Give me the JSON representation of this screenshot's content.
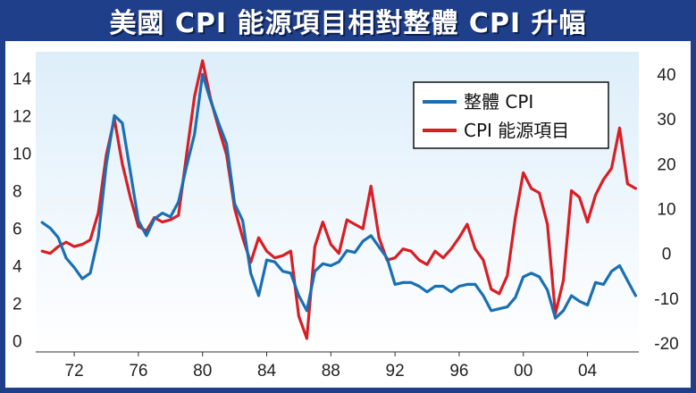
{
  "title": "美國 CPI 能源項目相對整體 CPI 升幅",
  "chart_data": {
    "type": "line",
    "title": "美國 CPI 能源項目相對整體 CPI 升幅",
    "xlabel": "",
    "ylabel": "",
    "xlim": [
      1969.6,
      2007.2
    ],
    "x_ticks": [
      1972,
      1976,
      1980,
      1984,
      1988,
      1992,
      1996,
      2000,
      2004
    ],
    "x_tick_labels": [
      "72",
      "76",
      "80",
      "84",
      "88",
      "92",
      "96",
      "00",
      "04"
    ],
    "y_left": {
      "range": [
        -0.6,
        15.4
      ],
      "ticks": [
        0,
        2,
        4,
        6,
        8,
        10,
        12,
        14
      ]
    },
    "y_right": {
      "range": [
        -22,
        45
      ],
      "ticks": [
        -20,
        -10,
        0,
        10,
        20,
        30,
        40
      ]
    },
    "grid": false,
    "legend_position": "top-right",
    "background_gradient": [
      "#ddeefa",
      "#ffffff"
    ],
    "series": [
      {
        "name": "整體 CPI",
        "axis": "left",
        "color": "#1a6fb3",
        "points": [
          [
            1970.0,
            6.3
          ],
          [
            1970.5,
            6.0
          ],
          [
            1971.0,
            5.5
          ],
          [
            1971.5,
            4.4
          ],
          [
            1972.0,
            3.9
          ],
          [
            1972.5,
            3.3
          ],
          [
            1973.0,
            3.6
          ],
          [
            1973.5,
            5.5
          ],
          [
            1974.0,
            9.4
          ],
          [
            1974.5,
            12.0
          ],
          [
            1975.0,
            11.6
          ],
          [
            1975.5,
            9.0
          ],
          [
            1976.0,
            6.4
          ],
          [
            1976.5,
            5.6
          ],
          [
            1977.0,
            6.5
          ],
          [
            1977.5,
            6.8
          ],
          [
            1978.0,
            6.6
          ],
          [
            1978.5,
            7.4
          ],
          [
            1979.0,
            9.3
          ],
          [
            1979.5,
            11.0
          ],
          [
            1980.0,
            14.2
          ],
          [
            1980.5,
            12.8
          ],
          [
            1981.0,
            11.6
          ],
          [
            1981.5,
            10.5
          ],
          [
            1982.0,
            7.3
          ],
          [
            1982.5,
            6.4
          ],
          [
            1983.0,
            3.6
          ],
          [
            1983.5,
            2.4
          ],
          [
            1984.0,
            4.3
          ],
          [
            1984.5,
            4.2
          ],
          [
            1985.0,
            3.7
          ],
          [
            1985.5,
            3.6
          ],
          [
            1986.0,
            2.4
          ],
          [
            1986.5,
            1.6
          ],
          [
            1987.0,
            3.7
          ],
          [
            1987.5,
            4.1
          ],
          [
            1988.0,
            4.0
          ],
          [
            1988.5,
            4.2
          ],
          [
            1989.0,
            4.8
          ],
          [
            1989.5,
            4.7
          ],
          [
            1990.0,
            5.3
          ],
          [
            1990.5,
            5.6
          ],
          [
            1991.0,
            5.0
          ],
          [
            1991.5,
            4.4
          ],
          [
            1992.0,
            3.0
          ],
          [
            1992.5,
            3.1
          ],
          [
            1993.0,
            3.1
          ],
          [
            1993.5,
            2.9
          ],
          [
            1994.0,
            2.6
          ],
          [
            1994.5,
            2.9
          ],
          [
            1995.0,
            2.9
          ],
          [
            1995.5,
            2.6
          ],
          [
            1996.0,
            2.9
          ],
          [
            1996.5,
            3.0
          ],
          [
            1997.0,
            3.0
          ],
          [
            1997.5,
            2.4
          ],
          [
            1998.0,
            1.6
          ],
          [
            1998.5,
            1.7
          ],
          [
            1999.0,
            1.8
          ],
          [
            1999.5,
            2.3
          ],
          [
            2000.0,
            3.4
          ],
          [
            2000.5,
            3.6
          ],
          [
            2001.0,
            3.4
          ],
          [
            2001.5,
            2.7
          ],
          [
            2002.0,
            1.2
          ],
          [
            2002.5,
            1.6
          ],
          [
            2003.0,
            2.4
          ],
          [
            2003.5,
            2.1
          ],
          [
            2004.0,
            1.9
          ],
          [
            2004.5,
            3.1
          ],
          [
            2005.0,
            3.0
          ],
          [
            2005.5,
            3.7
          ],
          [
            2006.0,
            4.0
          ],
          [
            2006.5,
            3.2
          ],
          [
            2007.0,
            2.4
          ]
        ]
      },
      {
        "name": "CPI 能源項目",
        "axis": "right",
        "color": "#d81e25",
        "points": [
          [
            1970.0,
            0.5
          ],
          [
            1970.5,
            0.0
          ],
          [
            1971.0,
            1.5
          ],
          [
            1971.5,
            2.5
          ],
          [
            1972.0,
            1.5
          ],
          [
            1972.5,
            2.0
          ],
          [
            1973.0,
            3.0
          ],
          [
            1973.5,
            9.0
          ],
          [
            1974.0,
            22.0
          ],
          [
            1974.5,
            30.0
          ],
          [
            1975.0,
            20.0
          ],
          [
            1975.5,
            12.5
          ],
          [
            1976.0,
            6.0
          ],
          [
            1976.5,
            5.0
          ],
          [
            1977.0,
            8.0
          ],
          [
            1977.5,
            7.0
          ],
          [
            1978.0,
            7.5
          ],
          [
            1978.5,
            8.5
          ],
          [
            1979.0,
            22.0
          ],
          [
            1979.5,
            35.0
          ],
          [
            1980.0,
            43.0
          ],
          [
            1980.5,
            34.5
          ],
          [
            1981.0,
            28.0
          ],
          [
            1981.5,
            22.0
          ],
          [
            1982.0,
            10.0
          ],
          [
            1982.5,
            3.5
          ],
          [
            1983.0,
            -2.0
          ],
          [
            1983.5,
            3.5
          ],
          [
            1984.0,
            0.5
          ],
          [
            1984.5,
            -1.0
          ],
          [
            1985.0,
            -0.5
          ],
          [
            1985.5,
            0.5
          ],
          [
            1986.0,
            -14.0
          ],
          [
            1986.5,
            -19.0
          ],
          [
            1987.0,
            1.5
          ],
          [
            1987.5,
            7.0
          ],
          [
            1988.0,
            2.0
          ],
          [
            1988.5,
            0.0
          ],
          [
            1989.0,
            7.5
          ],
          [
            1989.5,
            6.5
          ],
          [
            1990.0,
            5.5
          ],
          [
            1990.5,
            15.0
          ],
          [
            1991.0,
            3.5
          ],
          [
            1991.5,
            -1.5
          ],
          [
            1992.0,
            -1.0
          ],
          [
            1992.5,
            1.0
          ],
          [
            1993.0,
            0.5
          ],
          [
            1993.5,
            -1.5
          ],
          [
            1994.0,
            -2.5
          ],
          [
            1994.5,
            0.5
          ],
          [
            1995.0,
            -1.0
          ],
          [
            1995.5,
            1.0
          ],
          [
            1996.0,
            3.5
          ],
          [
            1996.5,
            6.5
          ],
          [
            1997.0,
            1.0
          ],
          [
            1997.5,
            -1.5
          ],
          [
            1998.0,
            -8.0
          ],
          [
            1998.5,
            -9.0
          ],
          [
            1999.0,
            -5.0
          ],
          [
            1999.5,
            8.0
          ],
          [
            2000.0,
            18.0
          ],
          [
            2000.5,
            14.5
          ],
          [
            2001.0,
            13.5
          ],
          [
            2001.5,
            6.5
          ],
          [
            2002.0,
            -13.5
          ],
          [
            2002.5,
            -6.0
          ],
          [
            2003.0,
            14.0
          ],
          [
            2003.5,
            12.5
          ],
          [
            2004.0,
            7.0
          ],
          [
            2004.5,
            13.0
          ],
          [
            2005.0,
            16.5
          ],
          [
            2005.5,
            19.0
          ],
          [
            2006.0,
            28.0
          ],
          [
            2006.5,
            15.5
          ],
          [
            2007.0,
            14.5
          ]
        ]
      }
    ]
  }
}
